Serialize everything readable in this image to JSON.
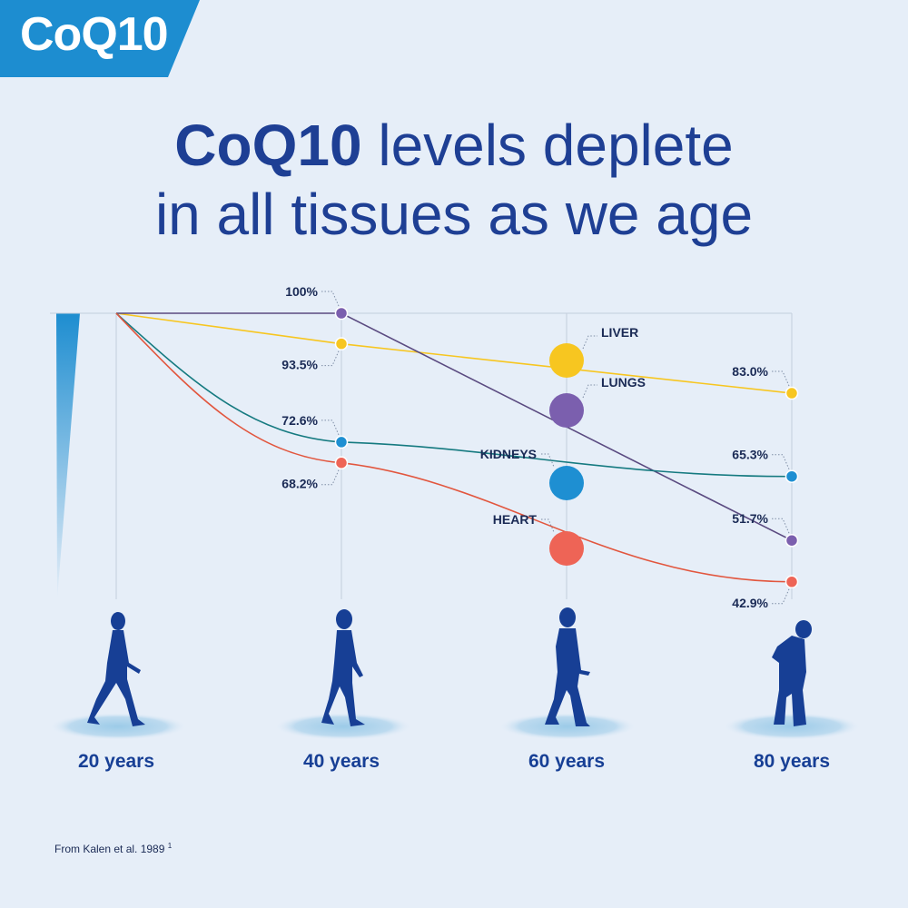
{
  "badge": {
    "text": "CoQ10"
  },
  "title": {
    "strong": "CoQ10",
    "line1_rest": " levels deplete",
    "line2": "in all tissues as we age"
  },
  "source": {
    "text": "From Kalen et al. 1989",
    "ref": "1"
  },
  "colors": {
    "background": "#e6eef8",
    "badge": "#1d8dd0",
    "title": "#1e3f94",
    "figures": "#173f95",
    "liver": "#f7c620",
    "lungs": "#7b5fae",
    "kidneys": "#1e8fd2",
    "heart": "#ee6456"
  },
  "chart_data": {
    "type": "line",
    "x": [
      20,
      40,
      60,
      80
    ],
    "x_tick_labels": [
      "20 years",
      "40 years",
      "60 years",
      "80 years"
    ],
    "ylim": [
      40,
      100
    ],
    "series": [
      {
        "name": "LIVER",
        "values": [
          100,
          93.5,
          null,
          83.0
        ],
        "labels": [
          "",
          "93.5%",
          "",
          "83.0%"
        ],
        "color": "#f7c620"
      },
      {
        "name": "LUNGS",
        "values": [
          100,
          100,
          null,
          51.7
        ],
        "labels": [
          "",
          "100%",
          "",
          "51.7%"
        ],
        "color": "#7b5fae"
      },
      {
        "name": "KIDNEYS",
        "values": [
          100,
          72.6,
          null,
          65.3
        ],
        "labels": [
          "",
          "72.6%",
          "",
          "65.3%"
        ],
        "color": "#1e8fd2"
      },
      {
        "name": "HEART",
        "values": [
          100,
          68.2,
          null,
          42.9
        ],
        "labels": [
          "",
          "68.2%",
          "",
          "42.9%"
        ],
        "color": "#ee6456"
      }
    ],
    "annotations": [
      "100%",
      "93.5%",
      "72.6%",
      "68.2%",
      "83.0%",
      "65.3%",
      "51.7%",
      "42.9%"
    ]
  }
}
